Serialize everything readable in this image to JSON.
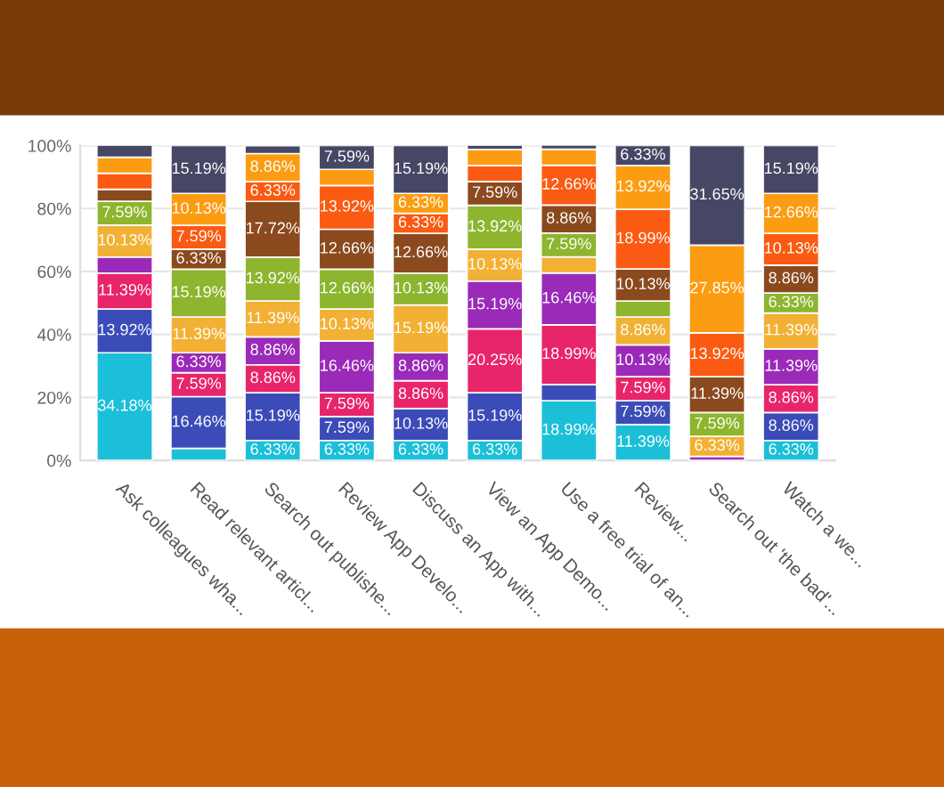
{
  "chart_data": {
    "type": "bar",
    "stacked": true,
    "categories": [
      "Ask colleagues wha...",
      "Read relevant articl...",
      "Search out publishe...",
      "Review App Develo...",
      "Discuss an App with...",
      "View an App Demo...",
      "Use a free trial of an...",
      "Review...",
      "Search out 'the bad'...",
      "Watch a we..."
    ],
    "ylim": [
      0,
      100
    ],
    "yticks": [
      {
        "value": 0,
        "label": "0%"
      },
      {
        "value": 20,
        "label": "20%"
      },
      {
        "value": 40,
        "label": "40%"
      },
      {
        "value": 60,
        "label": "60%"
      },
      {
        "value": 80,
        "label": "80%"
      },
      {
        "value": 100,
        "label": "100%"
      }
    ],
    "grid": "y",
    "series": [
      {
        "color": "#1bbfd8",
        "values": [
          34.18,
          3.8,
          6.33,
          6.33,
          6.33,
          6.33,
          18.99,
          11.39,
          0,
          6.33
        ],
        "value_labels": [
          "34.18%",
          null,
          "6.33%",
          "6.33%",
          "6.33%",
          "6.33%",
          "18.99%",
          "11.39%",
          null,
          "6.33%"
        ]
      },
      {
        "color": "#3b4cb8",
        "values": [
          13.92,
          16.46,
          15.19,
          7.59,
          10.13,
          15.19,
          5.1,
          7.59,
          0,
          8.86
        ],
        "value_labels": [
          "13.92%",
          "16.46%",
          "15.19%",
          "7.59%",
          "10.13%",
          "15.19%",
          null,
          "7.59%",
          null,
          "8.86%"
        ]
      },
      {
        "color": "#e8246a",
        "values": [
          11.39,
          7.59,
          8.86,
          7.59,
          8.86,
          20.25,
          18.99,
          7.59,
          0,
          8.86
        ],
        "value_labels": [
          "11.39%",
          "7.59%",
          "8.86%",
          "7.59%",
          "8.86%",
          "20.25%",
          "18.99%",
          "7.59%",
          null,
          "8.86%"
        ]
      },
      {
        "color": "#9a2ab8",
        "values": [
          5.1,
          6.33,
          8.86,
          16.46,
          8.86,
          15.19,
          16.46,
          10.13,
          1.3,
          11.39
        ],
        "value_labels": [
          null,
          "6.33%",
          "8.86%",
          "16.46%",
          "8.86%",
          "15.19%",
          "16.46%",
          "10.13%",
          null,
          "11.39%"
        ]
      },
      {
        "color": "#f2b134",
        "values": [
          10.13,
          11.39,
          11.39,
          10.13,
          15.19,
          10.13,
          5.1,
          8.86,
          6.33,
          11.39
        ],
        "value_labels": [
          "10.13%",
          "11.39%",
          "11.39%",
          "10.13%",
          "15.19%",
          "10.13%",
          null,
          "8.86%",
          "6.33%",
          "11.39%"
        ]
      },
      {
        "color": "#8db52e",
        "values": [
          7.59,
          15.19,
          13.92,
          12.66,
          10.13,
          13.92,
          7.59,
          5.1,
          7.59,
          6.33
        ],
        "value_labels": [
          "7.59%",
          "15.19%",
          "13.92%",
          "12.66%",
          "10.13%",
          "13.92%",
          "7.59%",
          null,
          "7.59%",
          "6.33%"
        ]
      },
      {
        "color": "#8b4a1e",
        "values": [
          3.8,
          6.33,
          17.72,
          12.66,
          12.66,
          7.59,
          8.86,
          10.13,
          11.39,
          8.86
        ],
        "value_labels": [
          null,
          "6.33%",
          "17.72%",
          "12.66%",
          "12.66%",
          "7.59%",
          "8.86%",
          "10.13%",
          "11.39%",
          "8.86%"
        ]
      },
      {
        "color": "#fb5a12",
        "values": [
          5.1,
          7.59,
          6.33,
          13.92,
          6.33,
          5.1,
          12.66,
          18.99,
          13.92,
          10.13
        ],
        "value_labels": [
          null,
          "7.59%",
          "6.33%",
          "13.92%",
          "6.33%",
          null,
          "12.66%",
          "18.99%",
          "13.92%",
          "10.13%"
        ]
      },
      {
        "color": "#fc9c12",
        "values": [
          5.1,
          10.13,
          8.86,
          5.1,
          6.33,
          5.1,
          5.1,
          13.92,
          27.85,
          12.66
        ],
        "value_labels": [
          null,
          "10.13%",
          "8.86%",
          null,
          "6.33%",
          null,
          null,
          "13.92%",
          "27.85%",
          "12.66%"
        ]
      },
      {
        "color": "#464665",
        "values": [
          3.8,
          15.19,
          2.5,
          7.59,
          15.19,
          1.3,
          1.3,
          6.33,
          31.65,
          15.19
        ],
        "value_labels": [
          null,
          "15.19%",
          null,
          "7.59%",
          "15.19%",
          null,
          null,
          "6.33%",
          "31.65%",
          "15.19%"
        ]
      }
    ]
  }
}
